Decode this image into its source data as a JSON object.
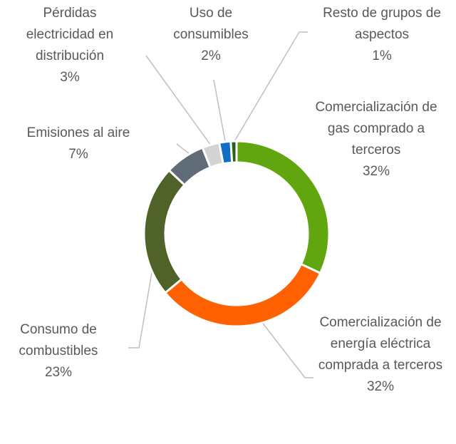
{
  "chart_data": {
    "type": "donut",
    "categories": [
      "Comercialización de gas comprado a terceros",
      "Comercialización de energía eléctrica comprada a terceros",
      "Consumo de combustibles",
      "Emisiones al aire",
      "Pérdidas electricidad en distribución",
      "Uso de consumibles",
      "Resto de grupos de aspectos"
    ],
    "values": [
      32,
      32,
      23,
      7,
      3,
      2,
      1
    ],
    "value_labels": [
      "32%",
      "32%",
      "23%",
      "7%",
      "3%",
      "2%",
      "1%"
    ],
    "colors": [
      "#62a60f",
      "#ff6100",
      "#4f6228",
      "#5f6b77",
      "#d3d3d3",
      "#0f6fc6",
      "#2e5e1a"
    ]
  }
}
